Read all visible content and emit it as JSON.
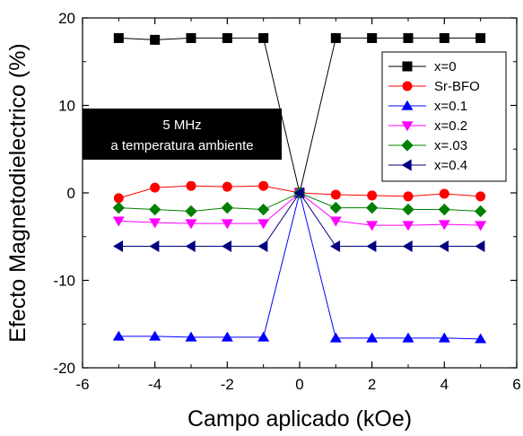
{
  "chart_data": {
    "type": "line",
    "title": "",
    "xlabel": "Campo aplicado (kOe)",
    "ylabel": "Efecto Magnetodielectrico (%)",
    "xlim": [
      -6,
      6
    ],
    "ylim": [
      -20,
      20
    ],
    "x_ticks": [
      -6,
      -4,
      -2,
      0,
      2,
      4,
      6
    ],
    "y_ticks": [
      -20,
      -10,
      0,
      10,
      20
    ],
    "x_tick_labels": [
      "-6",
      "-4",
      "-2",
      "0",
      "2",
      "4",
      "6"
    ],
    "y_tick_labels": [
      "-20",
      "-10",
      "0",
      "10",
      "20"
    ],
    "grid": false,
    "legend_position": "top-right",
    "annotation": {
      "line1": "5 MHz",
      "line2": "a temperatura ambiente"
    },
    "x": [
      -5,
      -4,
      -3,
      -2,
      -1,
      0,
      1,
      2,
      3,
      4,
      5
    ],
    "series": [
      {
        "name": "x=0",
        "marker": "square",
        "color": "#000000",
        "values": [
          17.7,
          17.5,
          17.7,
          17.7,
          17.7,
          0,
          17.7,
          17.7,
          17.7,
          17.7,
          17.7
        ]
      },
      {
        "name": "Sr-BFO",
        "marker": "circle",
        "color": "#ff0000",
        "values": [
          -0.6,
          0.6,
          0.8,
          0.7,
          0.8,
          0,
          -0.2,
          -0.3,
          -0.4,
          -0.1,
          -0.4
        ]
      },
      {
        "name": "x=0.1",
        "marker": "triangle-up",
        "color": "#0000ff",
        "values": [
          -16.4,
          -16.4,
          -16.5,
          -16.5,
          -16.5,
          0,
          -16.6,
          -16.6,
          -16.6,
          -16.6,
          -16.7
        ]
      },
      {
        "name": "x=0.2",
        "marker": "triangle-down",
        "color": "#ff00ff",
        "values": [
          -3.2,
          -3.4,
          -3.5,
          -3.5,
          -3.5,
          0,
          -3.2,
          -3.7,
          -3.7,
          -3.6,
          -3.7
        ]
      },
      {
        "name": "x=.03",
        "marker": "diamond",
        "color": "#008000",
        "values": [
          -1.7,
          -1.9,
          -2.1,
          -1.7,
          -1.9,
          0,
          -1.7,
          -1.7,
          -1.9,
          -1.9,
          -2.1
        ]
      },
      {
        "name": "x=0.4",
        "marker": "triangle-left",
        "color": "#000080",
        "values": [
          -6.1,
          -6.1,
          -6.1,
          -6.1,
          -6.1,
          0,
          -6.1,
          -6.1,
          -6.1,
          -6.1,
          -6.1
        ]
      }
    ]
  }
}
